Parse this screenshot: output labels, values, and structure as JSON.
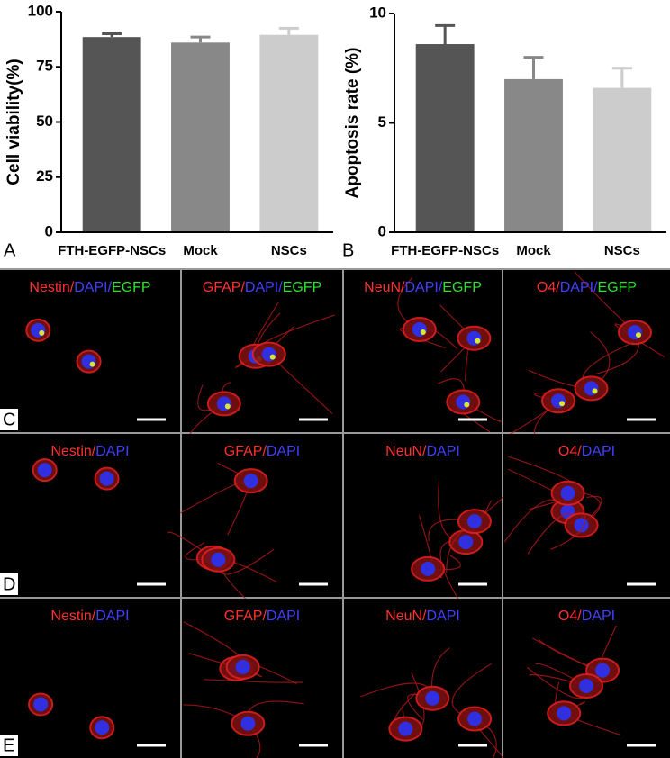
{
  "chart_data": [
    {
      "type": "bar",
      "panel_label": "A",
      "y_label": "Cell viability(%)",
      "categories": [
        "FTH-EGFP-NSCs",
        "Mock",
        "NSCs"
      ],
      "values": [
        88.5,
        86,
        89.5
      ],
      "errors": [
        1.5,
        2.5,
        3
      ],
      "colors": [
        "#555555",
        "#888888",
        "#cccccc"
      ],
      "ylim": [
        0,
        100
      ],
      "yticks": [
        0,
        25,
        50,
        75,
        100
      ]
    },
    {
      "type": "bar",
      "panel_label": "B",
      "y_label": "Apoptosis rate (%)",
      "categories": [
        "FTH-EGFP-NSCs",
        "Mock",
        "NSCs"
      ],
      "values": [
        8.6,
        7.0,
        6.6
      ],
      "errors": [
        0.85,
        1.0,
        0.9
      ],
      "colors": [
        "#555555",
        "#888888",
        "#cccccc"
      ],
      "ylim": [
        0,
        10
      ],
      "yticks": [
        0,
        5,
        10
      ]
    }
  ],
  "micrographs": {
    "rows": [
      {
        "label": "C",
        "cells": [
          [
            {
              "text": "Nestin",
              "color": "#ff3030"
            },
            {
              "text": "/",
              "color": "#ff3030"
            },
            {
              "text": "DAPI",
              "color": "#4040ff"
            },
            {
              "text": "/",
              "color": "#4040ff"
            },
            {
              "text": "EGFP",
              "color": "#30e030"
            }
          ],
          [
            {
              "text": "GFAP",
              "color": "#ff3030"
            },
            {
              "text": "/",
              "color": "#ff3030"
            },
            {
              "text": "DAPI",
              "color": "#4040ff"
            },
            {
              "text": "/",
              "color": "#4040ff"
            },
            {
              "text": "EGFP",
              "color": "#30e030"
            }
          ],
          [
            {
              "text": "NeuN",
              "color": "#ff3030"
            },
            {
              "text": "/",
              "color": "#ff3030"
            },
            {
              "text": "DAPI",
              "color": "#4040ff"
            },
            {
              "text": "/",
              "color": "#4040ff"
            },
            {
              "text": "EGFP",
              "color": "#30e030"
            }
          ],
          [
            {
              "text": "O4",
              "color": "#ff3030"
            },
            {
              "text": "/",
              "color": "#ff3030"
            },
            {
              "text": "DAPI",
              "color": "#4040ff"
            },
            {
              "text": "/",
              "color": "#4040ff"
            },
            {
              "text": "EGFP",
              "color": "#30e030"
            }
          ]
        ]
      },
      {
        "label": "D",
        "cells": [
          [
            {
              "text": "Nestin",
              "color": "#ff3030"
            },
            {
              "text": "/",
              "color": "#ff3030"
            },
            {
              "text": "DAPI",
              "color": "#4040ff"
            }
          ],
          [
            {
              "text": "GFAP",
              "color": "#ff3030"
            },
            {
              "text": "/",
              "color": "#ff3030"
            },
            {
              "text": "DAPI",
              "color": "#4040ff"
            }
          ],
          [
            {
              "text": "NeuN",
              "color": "#ff3030"
            },
            {
              "text": "/",
              "color": "#ff3030"
            },
            {
              "text": "DAPI",
              "color": "#4040ff"
            }
          ],
          [
            {
              "text": "O4",
              "color": "#ff3030"
            },
            {
              "text": "/",
              "color": "#ff3030"
            },
            {
              "text": "DAPI",
              "color": "#4040ff"
            }
          ]
        ]
      },
      {
        "label": "E",
        "cells": [
          [
            {
              "text": "Nestin",
              "color": "#ff3030"
            },
            {
              "text": "/",
              "color": "#ff3030"
            },
            {
              "text": "DAPI",
              "color": "#4040ff"
            }
          ],
          [
            {
              "text": "GFAP",
              "color": "#ff3030"
            },
            {
              "text": "/",
              "color": "#ff3030"
            },
            {
              "text": "DAPI",
              "color": "#4040ff"
            }
          ],
          [
            {
              "text": "NeuN",
              "color": "#ff3030"
            },
            {
              "text": "/",
              "color": "#ff3030"
            },
            {
              "text": "DAPI",
              "color": "#4040ff"
            }
          ],
          [
            {
              "text": "O4",
              "color": "#ff3030"
            },
            {
              "text": "/",
              "color": "#ff3030"
            },
            {
              "text": "DAPI",
              "color": "#4040ff"
            }
          ]
        ]
      }
    ]
  }
}
